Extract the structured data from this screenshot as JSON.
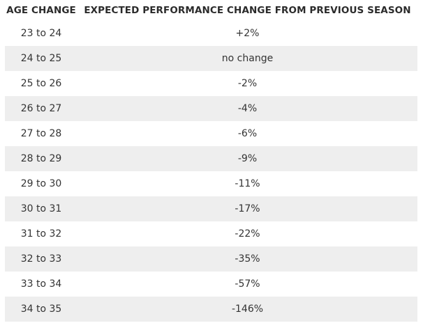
{
  "table": {
    "headers": {
      "age": "AGE CHANGE",
      "performance": "EXPECTED PERFORMANCE CHANGE FROM PREVIOUS SEASON"
    },
    "rows": [
      {
        "age": "23 to 24",
        "change": "+2%"
      },
      {
        "age": "24 to 25",
        "change": "no change"
      },
      {
        "age": "25 to 26",
        "change": "-2%"
      },
      {
        "age": "26 to 27",
        "change": "-4%"
      },
      {
        "age": "27 to 28",
        "change": "-6%"
      },
      {
        "age": "28 to 29",
        "change": "-9%"
      },
      {
        "age": "29 to 30",
        "change": "-11%"
      },
      {
        "age": "30 to 31",
        "change": "-17%"
      },
      {
        "age": "31 to 32",
        "change": "-22%"
      },
      {
        "age": "32 to 33",
        "change": "-35%"
      },
      {
        "age": "33 to 34",
        "change": "-57%"
      },
      {
        "age": "34 to 35",
        "change": "-146%"
      }
    ]
  },
  "colors": {
    "shaded_row": "#eeeeee",
    "text": "#333333"
  }
}
